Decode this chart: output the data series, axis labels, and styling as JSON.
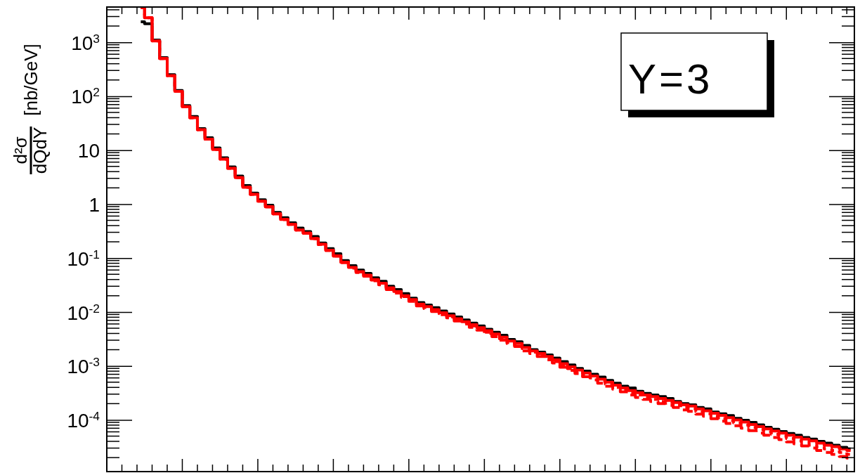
{
  "chart_data": {
    "type": "step",
    "ylabel": "d²σ/dQdY [nb/GeV]",
    "annotations": [
      "Y=3"
    ],
    "log": "y",
    "grid": false,
    "legend": false,
    "categories": [
      null,
      null,
      null,
      null,
      null,
      null,
      null,
      null,
      null,
      null,
      null,
      null,
      null,
      null,
      null,
      null,
      null,
      null,
      null,
      null,
      null,
      null,
      null,
      null,
      null,
      null,
      null,
      null,
      null,
      null,
      null,
      null,
      null,
      null,
      null,
      null,
      null,
      null,
      null,
      null,
      null,
      null,
      null,
      null,
      null,
      null,
      null,
      null,
      null,
      null,
      null,
      null,
      null,
      null,
      null,
      null,
      null,
      null,
      null,
      null,
      null,
      null,
      null,
      null,
      null,
      null,
      null,
      null,
      null,
      null,
      null,
      null,
      null,
      null,
      null,
      null,
      null,
      null,
      null,
      null,
      null,
      null,
      null,
      null,
      null,
      null,
      null,
      null,
      null,
      null,
      null,
      null,
      null,
      null,
      null
    ],
    "ylim": [
      1.1e-05,
      4500
    ],
    "yticks": [
      {
        "value": 0.0001,
        "label": "10$^{-4}$"
      },
      {
        "value": 0.001,
        "label": "10$^{-3}$"
      },
      {
        "value": 0.01,
        "label": "10$^{-2}$"
      },
      {
        "value": 0.1,
        "label": "10$^{-1}$"
      },
      1,
      10,
      {
        "value": 100,
        "label": "10$^{2}$"
      },
      {
        "value": 1000,
        "label": "10$^{3}$"
      }
    ],
    "series": [
      {
        "color": "#000000",
        "line_style": "solid",
        "values": [
          2400,
          2200,
          1100,
          520,
          250,
          128,
          67,
          42,
          25,
          17,
          11,
          7.2,
          4.9,
          3.3,
          2.2,
          1.6,
          1.2,
          0.95,
          0.7,
          0.56,
          0.45,
          0.36,
          0.31,
          0.25,
          0.19,
          0.15,
          0.12,
          0.09,
          0.072,
          0.06,
          0.052,
          0.043,
          0.037,
          0.03,
          0.026,
          0.022,
          0.018,
          0.015,
          0.0135,
          0.012,
          0.0104,
          0.0092,
          0.0081,
          0.0071,
          0.0062,
          0.0055,
          0.0048,
          0.0042,
          0.0037,
          0.0031,
          0.0028,
          0.0024,
          0.002,
          0.0018,
          0.0016,
          0.0014,
          0.0012,
          0.00104,
          0.0009,
          0.0008,
          0.0007,
          0.00062,
          0.00054,
          0.00048,
          0.00042,
          0.00039,
          0.00034,
          0.00031,
          0.00029,
          0.00027,
          0.00025,
          0.00022,
          0.0002,
          0.00019,
          0.00017,
          0.00016,
          0.00014,
          0.00013,
          0.00012,
          0.000107,
          9.8e-05,
          9e-05,
          8.1e-05,
          7.3e-05,
          6.7e-05,
          6.1e-05,
          5.6e-05,
          5.2e-05,
          4.7e-05,
          4.4e-05,
          4e-05,
          3.7e-05,
          3.4e-05,
          3.1e-05,
          2.9e-05
        ]
      },
      {
        "color": "#ff0000",
        "line_style": "dashed",
        "values": [
          4400,
          2850,
          1060,
          500,
          240,
          123,
          64,
          40,
          24,
          16,
          10.3,
          6.8,
          4.6,
          3.1,
          2.05,
          1.52,
          1.13,
          0.89,
          0.66,
          0.52,
          0.42,
          0.33,
          0.29,
          0.23,
          0.178,
          0.138,
          0.108,
          0.082,
          0.065,
          0.054,
          0.046,
          0.038,
          0.032,
          0.026,
          0.0225,
          0.0187,
          0.0158,
          0.013,
          0.0116,
          0.0102,
          0.0089,
          0.0078,
          0.0068,
          0.006,
          0.0052,
          0.0046,
          0.004,
          0.0035,
          0.003,
          0.0026,
          0.0023,
          0.0019,
          0.0017,
          0.0015,
          0.0013,
          0.00113,
          0.00095,
          0.00083,
          0.00072,
          0.00063,
          0.00055,
          0.00048,
          0.00042,
          0.00037,
          0.00033,
          0.00029,
          0.00026,
          0.00024,
          0.00022,
          0.0002,
          0.000186,
          0.00017,
          0.000153,
          0.000144,
          0.000128,
          0.000117,
          0.000105,
          9.5e-05,
          8.6e-05,
          7.8e-05,
          7e-05,
          6.3e-05,
          5.7e-05,
          5.2e-05,
          4.7e-05,
          4.3e-05,
          3.9e-05,
          3.6e-05,
          3.3e-05,
          3e-05,
          2.7e-05,
          2.5e-05,
          2.3e-05,
          2.1e-05,
          1.96e-05
        ]
      },
      {
        "color": "#ff0000",
        "line_style": "dotted",
        "values": [
          4400,
          2850,
          1060,
          500,
          240,
          123,
          64,
          40,
          24,
          16,
          10.3,
          6.8,
          4.6,
          3.1,
          2.05,
          1.52,
          1.13,
          0.89,
          0.66,
          0.52,
          0.42,
          0.33,
          0.29,
          0.23,
          0.179,
          0.139,
          0.109,
          0.083,
          0.066,
          0.055,
          0.047,
          0.039,
          0.033,
          0.027,
          0.023,
          0.0193,
          0.0164,
          0.0135,
          0.0121,
          0.0106,
          0.0093,
          0.0081,
          0.0071,
          0.0063,
          0.0055,
          0.0048,
          0.0042,
          0.0037,
          0.0032,
          0.0027,
          0.0024,
          0.0021,
          0.0018,
          0.0016,
          0.0014,
          0.0012,
          0.00102,
          0.00089,
          0.00078,
          0.00068,
          0.0006,
          0.00052,
          0.00046,
          0.0004,
          0.00036,
          0.00032,
          0.00029,
          0.00026,
          0.00024,
          0.00022,
          0.00021,
          0.00019,
          0.00017,
          0.00016,
          0.000142,
          0.00013,
          0.000117,
          0.000106,
          9.7e-05,
          8.8e-05,
          8e-05,
          7.2e-05,
          6.6e-05,
          6e-05,
          5.4e-05,
          5e-05,
          4.5e-05,
          4.1e-05,
          3.8e-05,
          3.5e-05,
          3.2e-05,
          2.9e-05,
          2.7e-05,
          2.5e-05,
          2.3e-05
        ]
      },
      {
        "color": "#ff0000",
        "line_style": "solid",
        "values": [
          4400,
          2850,
          1060,
          500,
          240,
          123,
          64,
          40,
          24,
          16,
          10.3,
          6.8,
          4.6,
          3.1,
          2.05,
          1.52,
          1.13,
          0.89,
          0.66,
          0.52,
          0.42,
          0.33,
          0.29,
          0.23,
          0.18,
          0.14,
          0.11,
          0.084,
          0.067,
          0.056,
          0.048,
          0.04,
          0.034,
          0.028,
          0.024,
          0.02,
          0.017,
          0.014,
          0.0126,
          0.0111,
          0.0097,
          0.0085,
          0.0075,
          0.0066,
          0.0058,
          0.0051,
          0.0045,
          0.0039,
          0.0034,
          0.0029,
          0.0026,
          0.0022,
          0.0019,
          0.0017,
          0.0015,
          0.0013,
          0.0011,
          0.00096,
          0.00084,
          0.00074,
          0.00065,
          0.00057,
          0.0005,
          0.00044,
          0.00039,
          0.00035,
          0.00032,
          0.00029,
          0.00027,
          0.00025,
          0.00023,
          0.00021,
          0.00019,
          0.00018,
          0.00016,
          0.000147,
          0.000133,
          0.000121,
          0.00011,
          0.0001,
          9.1e-05,
          8.2e-05,
          7.5e-05,
          6.8e-05,
          6.2e-05,
          5.7e-05,
          5.2e-05,
          4.8e-05,
          4.4e-05,
          4.1e-05,
          3.7e-05,
          3.4e-05,
          3.2e-05,
          2.9e-05,
          2.7e-05
        ]
      }
    ]
  }
}
